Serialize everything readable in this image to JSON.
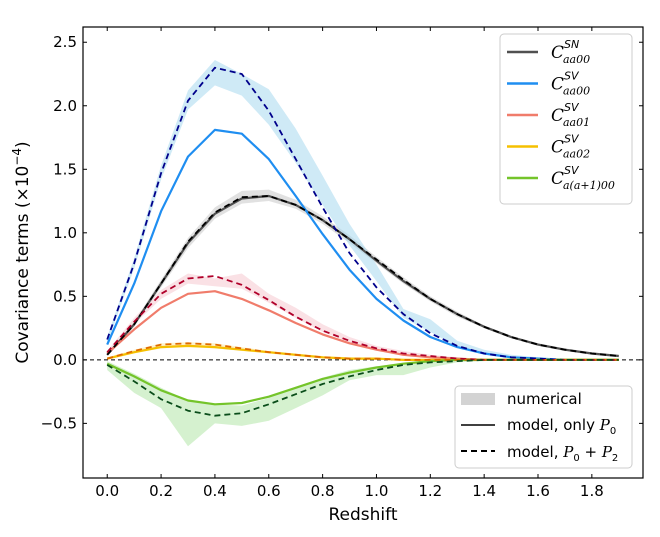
{
  "chart_data": {
    "type": "line",
    "xlabel": "Redshift",
    "ylabel_prefix": "Covariance terms (×10",
    "ylabel_exp": "−4",
    "ylabel_suffix": ")",
    "xlim": [
      -0.09,
      1.99
    ],
    "ylim": [
      -0.93,
      2.62
    ],
    "xticks": [
      0.0,
      0.2,
      0.4,
      0.6,
      0.8,
      1.0,
      1.2,
      1.4,
      1.6,
      1.8
    ],
    "xtick_labels": [
      "0.0",
      "0.2",
      "0.4",
      "0.6",
      "0.8",
      "1.0",
      "1.2",
      "1.4",
      "1.6",
      "1.8"
    ],
    "yticks": [
      -0.5,
      0.0,
      0.5,
      1.0,
      1.5,
      2.0,
      2.5
    ],
    "ytick_labels": [
      "−0.5",
      "0.0",
      "0.5",
      "1.0",
      "1.5",
      "2.0",
      "2.5"
    ],
    "zero_line": true,
    "grid": false,
    "legend_series_placement": "top-right",
    "legend_style_placement": "bottom-right",
    "x": [
      0.0,
      0.1,
      0.2,
      0.3,
      0.4,
      0.5,
      0.6,
      0.7,
      0.8,
      0.9,
      1.0,
      1.1,
      1.2,
      1.3,
      1.4,
      1.5,
      1.6,
      1.7,
      1.8,
      1.9
    ],
    "series": [
      {
        "key": "SN",
        "label_main": "C",
        "label_sup": "SN",
        "label_sub": "aa00",
        "color": "#505050",
        "dash_color": "#000000",
        "band_color": "#c8c8c8",
        "model_P0": [
          0.04,
          0.28,
          0.6,
          0.92,
          1.15,
          1.27,
          1.29,
          1.22,
          1.1,
          0.95,
          0.78,
          0.62,
          0.48,
          0.36,
          0.26,
          0.18,
          0.12,
          0.08,
          0.05,
          0.03
        ],
        "model_P0P2": [
          0.04,
          0.28,
          0.6,
          0.93,
          1.16,
          1.28,
          1.29,
          1.22,
          1.1,
          0.95,
          0.79,
          0.63,
          0.48,
          0.36,
          0.26,
          0.18,
          0.12,
          0.08,
          0.05,
          0.03
        ],
        "numerical_low": [
          0.03,
          0.26,
          0.57,
          0.88,
          1.11,
          1.23,
          1.25,
          1.19,
          1.07,
          0.92,
          0.76,
          0.6,
          0.46,
          0.34,
          0.25,
          0.17,
          0.11,
          0.07,
          0.04,
          0.02
        ],
        "numerical_high": [
          0.05,
          0.3,
          0.63,
          0.96,
          1.2,
          1.33,
          1.34,
          1.26,
          1.13,
          0.98,
          0.81,
          0.65,
          0.5,
          0.38,
          0.27,
          0.19,
          0.13,
          0.09,
          0.06,
          0.04
        ]
      },
      {
        "key": "SV00",
        "label_main": "C",
        "label_sup": "SV",
        "label_sub": "aa00",
        "color": "#1f8ef1",
        "dash_color": "#00008b",
        "band_color": "#a7d8ef",
        "model_P0": [
          0.12,
          0.6,
          1.17,
          1.6,
          1.81,
          1.78,
          1.58,
          1.29,
          0.99,
          0.71,
          0.48,
          0.31,
          0.18,
          0.1,
          0.05,
          0.02,
          0.01,
          0.0,
          0.0,
          0.0
        ],
        "model_P0P2": [
          0.16,
          0.76,
          1.47,
          2.04,
          2.3,
          2.25,
          1.96,
          1.58,
          1.2,
          0.84,
          0.57,
          0.36,
          0.21,
          0.11,
          0.05,
          0.02,
          0.01,
          0.0,
          0.0,
          0.0
        ],
        "numerical_low": [
          0.13,
          0.72,
          1.42,
          1.97,
          2.16,
          2.08,
          1.85,
          1.55,
          1.22,
          0.9,
          0.62,
          0.33,
          0.22,
          0.1,
          0.05,
          0.02,
          0.0,
          0.0,
          0.0,
          0.0
        ],
        "numerical_high": [
          0.18,
          0.8,
          1.53,
          2.12,
          2.36,
          2.25,
          2.13,
          1.82,
          1.45,
          1.07,
          0.75,
          0.4,
          0.32,
          0.15,
          0.08,
          0.04,
          0.02,
          0.01,
          0.0,
          0.0
        ]
      },
      {
        "key": "SV01",
        "label_main": "C",
        "label_sup": "SV",
        "label_sub": "aa01",
        "color": "#f07c6b",
        "dash_color": "#b0002a",
        "band_color": "#f6c8cf",
        "model_P0": [
          0.05,
          0.24,
          0.41,
          0.52,
          0.54,
          0.48,
          0.39,
          0.29,
          0.2,
          0.13,
          0.08,
          0.04,
          0.02,
          0.01,
          0.0,
          0.0,
          0.0,
          0.0,
          0.0,
          0.0
        ],
        "model_P0P2": [
          0.06,
          0.3,
          0.52,
          0.64,
          0.66,
          0.59,
          0.47,
          0.34,
          0.23,
          0.15,
          0.09,
          0.05,
          0.03,
          0.01,
          0.0,
          0.0,
          0.0,
          0.0,
          0.0,
          0.0
        ],
        "numerical_low": [
          0.05,
          0.28,
          0.48,
          0.6,
          0.58,
          0.56,
          0.45,
          0.33,
          0.22,
          0.14,
          0.08,
          0.05,
          0.02,
          0.01,
          0.0,
          0.0,
          0.0,
          0.0,
          0.0,
          0.0
        ],
        "numerical_high": [
          0.07,
          0.33,
          0.55,
          0.68,
          0.64,
          0.68,
          0.52,
          0.41,
          0.28,
          0.18,
          0.11,
          0.07,
          0.04,
          0.02,
          0.0,
          0.0,
          0.0,
          0.0,
          0.0,
          0.0
        ]
      },
      {
        "key": "SV02",
        "label_main": "C",
        "label_sup": "SV",
        "label_sub": "aa02",
        "color": "#f5c000",
        "dash_color": "#e06a00",
        "band_color": "#fbe7a1",
        "model_P0": [
          0.01,
          0.06,
          0.1,
          0.11,
          0.1,
          0.08,
          0.06,
          0.04,
          0.02,
          0.01,
          0.01,
          0.0,
          0.0,
          0.0,
          0.0,
          0.0,
          0.0,
          0.0,
          0.0,
          0.0
        ],
        "model_P0P2": [
          0.01,
          0.07,
          0.12,
          0.13,
          0.12,
          0.09,
          0.06,
          0.04,
          0.02,
          0.01,
          0.01,
          0.0,
          0.0,
          0.0,
          0.0,
          0.0,
          0.0,
          0.0,
          0.0,
          0.0
        ],
        "numerical_low": [
          0.0,
          0.05,
          0.09,
          0.1,
          0.09,
          0.07,
          0.05,
          0.03,
          0.01,
          0.0,
          0.0,
          0.0,
          0.0,
          0.0,
          0.0,
          0.0,
          0.0,
          0.0,
          0.0,
          0.0
        ],
        "numerical_high": [
          0.02,
          0.08,
          0.13,
          0.14,
          0.13,
          0.1,
          0.07,
          0.05,
          0.03,
          0.02,
          0.01,
          0.01,
          0.0,
          0.0,
          0.0,
          0.0,
          0.0,
          0.0,
          0.0,
          0.0
        ]
      },
      {
        "key": "SVa1",
        "label_main": "C",
        "label_sup": "SV",
        "label_sub": "a(a+1)00",
        "color": "#74c42a",
        "dash_color": "#0a4d1a",
        "band_color": "#b3e6a8",
        "model_P0": [
          -0.03,
          -0.13,
          -0.24,
          -0.32,
          -0.35,
          -0.34,
          -0.29,
          -0.22,
          -0.15,
          -0.1,
          -0.06,
          -0.03,
          -0.01,
          0.0,
          0.0,
          0.0,
          0.0,
          0.0,
          0.0,
          0.0
        ],
        "model_P0P2": [
          -0.04,
          -0.17,
          -0.31,
          -0.4,
          -0.44,
          -0.42,
          -0.35,
          -0.27,
          -0.19,
          -0.13,
          -0.08,
          -0.04,
          -0.02,
          -0.01,
          0.0,
          0.0,
          0.0,
          0.0,
          0.0,
          0.0
        ],
        "numerical_low": [
          -0.08,
          -0.26,
          -0.38,
          -0.68,
          -0.5,
          -0.52,
          -0.48,
          -0.38,
          -0.28,
          -0.16,
          -0.12,
          -0.12,
          -0.06,
          -0.02,
          -0.01,
          0.0,
          0.0,
          0.0,
          0.0,
          0.0
        ],
        "numerical_high": [
          -0.01,
          -0.11,
          -0.22,
          -0.32,
          -0.35,
          -0.36,
          -0.3,
          -0.22,
          -0.14,
          -0.08,
          -0.05,
          -0.03,
          -0.01,
          0.0,
          0.0,
          0.0,
          0.0,
          0.0,
          0.0,
          0.0
        ]
      }
    ],
    "style_legend": [
      {
        "key": "numerical",
        "label": "numerical"
      },
      {
        "key": "model_P0",
        "label_prefix": "model, only ",
        "label_math": "P",
        "label_sub": "0"
      },
      {
        "key": "model_P0P2",
        "label_prefix": "model, ",
        "label_math": "P",
        "label_sub": "0",
        "label_plus": " + ",
        "label_math2": "P",
        "label_sub2": "2"
      }
    ]
  }
}
